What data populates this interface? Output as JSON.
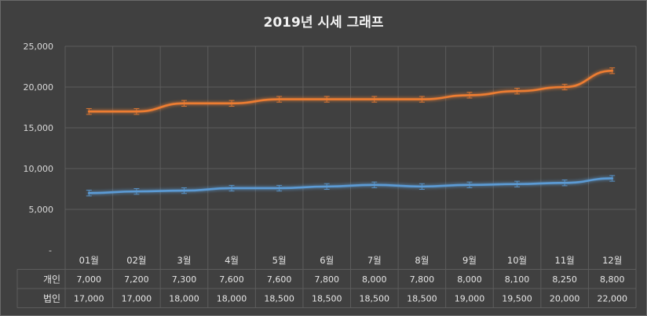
{
  "chart_data": {
    "type": "line",
    "title": "2019년 시세 그래프",
    "categories": [
      "01월",
      "02월",
      "3월",
      "4월",
      "5월",
      "6월",
      "7월",
      "8월",
      "9월",
      "10월",
      "11월",
      "12월"
    ],
    "ylim": [
      0,
      25000
    ],
    "ytick_labels": [
      "-",
      "5,000",
      "10,000",
      "15,000",
      "20,000",
      "25,000"
    ],
    "grid": true,
    "error_bars": true,
    "legend": "data-table",
    "series": [
      {
        "name": "개인",
        "color": "#5b9bd5",
        "values": [
          7000,
          7200,
          7300,
          7600,
          7600,
          7800,
          8000,
          7800,
          8000,
          8100,
          8250,
          8800
        ],
        "labels": [
          "7,000",
          "7,200",
          "7,300",
          "7,600",
          "7,600",
          "7,800",
          "8,000",
          "7,800",
          "8,000",
          "8,100",
          "8,250",
          "8,800"
        ]
      },
      {
        "name": "법인",
        "color": "#ed7d31",
        "values": [
          17000,
          17000,
          18000,
          18000,
          18500,
          18500,
          18500,
          18500,
          19000,
          19500,
          20000,
          22000
        ],
        "labels": [
          "17,000",
          "17,000",
          "18,000",
          "18,000",
          "18,500",
          "18,500",
          "18,500",
          "18,500",
          "19,000",
          "19,500",
          "20,000",
          "22,000"
        ]
      }
    ]
  }
}
